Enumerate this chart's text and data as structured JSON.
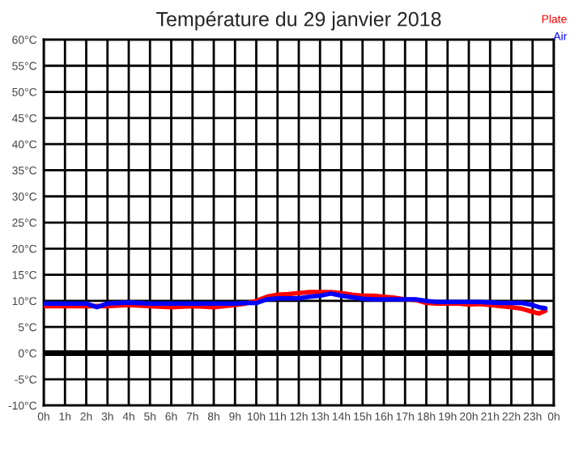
{
  "chart_data": {
    "type": "line",
    "title": "Température du 29 janvier 2018",
    "xlim": [
      "2018-01-29T00:00",
      "2018-01-30T00:00"
    ],
    "xticks": [
      {
        "value": "2018-01-29T00:00",
        "label": "0h"
      },
      {
        "value": "2018-01-29T01:00",
        "label": "1h"
      },
      {
        "value": "2018-01-29T02:00",
        "label": "2h"
      },
      {
        "value": "2018-01-29T03:00",
        "label": "3h"
      },
      {
        "value": "2018-01-29T04:00",
        "label": "4h"
      },
      {
        "value": "2018-01-29T05:00",
        "label": "5h"
      },
      {
        "value": "2018-01-29T06:00",
        "label": "6h"
      },
      {
        "value": "2018-01-29T07:00",
        "label": "7h"
      },
      {
        "value": "2018-01-29T08:00",
        "label": "8h"
      },
      {
        "value": "2018-01-29T09:00",
        "label": "9h"
      },
      {
        "value": "2018-01-29T10:00",
        "label": "10h"
      },
      {
        "value": "2018-01-29T11:00",
        "label": "11h"
      },
      {
        "value": "2018-01-29T12:00",
        "label": "12h"
      },
      {
        "value": "2018-01-29T13:00",
        "label": "13h"
      },
      {
        "value": "2018-01-29T14:00",
        "label": "14h"
      },
      {
        "value": "2018-01-29T15:00",
        "label": "15h"
      },
      {
        "value": "2018-01-29T16:00",
        "label": "16h"
      },
      {
        "value": "2018-01-29T17:00",
        "label": "17h"
      },
      {
        "value": "2018-01-29T18:00",
        "label": "18h"
      },
      {
        "value": "2018-01-29T19:00",
        "label": "19h"
      },
      {
        "value": "2018-01-29T20:00",
        "label": "20h"
      },
      {
        "value": "2018-01-29T21:00",
        "label": "21h"
      },
      {
        "value": "2018-01-29T22:00",
        "label": "22h"
      },
      {
        "value": "2018-01-29T23:00",
        "label": "23h"
      },
      {
        "value": "2018-01-30T00:00",
        "label": "0h"
      }
    ],
    "ylim": [
      -10,
      60
    ],
    "yticks": [
      {
        "value": -10,
        "label": "-10°C"
      },
      {
        "value": -5,
        "label": "-5°C"
      },
      {
        "value": 0,
        "label": "0°C"
      },
      {
        "value": 5,
        "label": "5°C"
      },
      {
        "value": 10,
        "label": "10°C"
      },
      {
        "value": 15,
        "label": "15°C"
      },
      {
        "value": 20,
        "label": "20°C"
      },
      {
        "value": 25,
        "label": "25°C"
      },
      {
        "value": 30,
        "label": "30°C"
      },
      {
        "value": 35,
        "label": "35°C"
      },
      {
        "value": 40,
        "label": "40°C"
      },
      {
        "value": 45,
        "label": "45°C"
      },
      {
        "value": 50,
        "label": "50°C"
      },
      {
        "value": 55,
        "label": "55°C"
      },
      {
        "value": 60,
        "label": "60°C"
      }
    ],
    "grid": true,
    "legend": "top right",
    "marker": "none",
    "line_style": "solid",
    "ref_lines": [
      {
        "axis": "y",
        "value": 0,
        "color": "#000000"
      }
    ],
    "series": [
      {
        "name": "Plate",
        "color": "#ff0000",
        "x": [
          "2018-01-29T00:00",
          "2018-01-29T01:00",
          "2018-01-29T02:00",
          "2018-01-29T03:00",
          "2018-01-29T04:00",
          "2018-01-29T05:00",
          "2018-01-29T06:00",
          "2018-01-29T07:00",
          "2018-01-29T08:00",
          "2018-01-29T09:00",
          "2018-01-29T09:30",
          "2018-01-29T10:00",
          "2018-01-29T10:30",
          "2018-01-29T11:00",
          "2018-01-29T11:30",
          "2018-01-29T12:00",
          "2018-01-29T12:30",
          "2018-01-29T13:00",
          "2018-01-29T13:30",
          "2018-01-29T14:00",
          "2018-01-29T14:30",
          "2018-01-29T15:00",
          "2018-01-29T15:30",
          "2018-01-29T16:00",
          "2018-01-29T16:30",
          "2018-01-29T17:00",
          "2018-01-29T17:30",
          "2018-01-29T18:00",
          "2018-01-29T18:30",
          "2018-01-29T19:00",
          "2018-01-29T19:30",
          "2018-01-29T20:00",
          "2018-01-29T20:30",
          "2018-01-29T21:00",
          "2018-01-29T21:30",
          "2018-01-29T22:00",
          "2018-01-29T22:30",
          "2018-01-29T23:00",
          "2018-01-29T23:18",
          "2018-01-29T23:36"
        ],
        "values": [
          9,
          9,
          9,
          9,
          9.2,
          9,
          8.8,
          9,
          8.8,
          9.2,
          9.5,
          10,
          10.8,
          11.2,
          11.3,
          11.5,
          11.7,
          11.7,
          11.7,
          11.5,
          11.2,
          11,
          11,
          10.8,
          10.6,
          10.3,
          10.2,
          9.6,
          9.5,
          9.5,
          9.5,
          9.3,
          9.4,
          9.2,
          9,
          8.8,
          8.5,
          7.9,
          7.6,
          8.1
        ]
      },
      {
        "name": "Air",
        "color": "#0000ff",
        "x": [
          "2018-01-29T00:00",
          "2018-01-29T01:00",
          "2018-01-29T02:00",
          "2018-01-29T02:30",
          "2018-01-29T03:00",
          "2018-01-29T04:00",
          "2018-01-29T05:00",
          "2018-01-29T06:00",
          "2018-01-29T07:00",
          "2018-01-29T08:00",
          "2018-01-29T09:00",
          "2018-01-29T09:30",
          "2018-01-29T10:00",
          "2018-01-29T10:30",
          "2018-01-29T11:00",
          "2018-01-29T11:30",
          "2018-01-29T12:00",
          "2018-01-29T12:30",
          "2018-01-29T13:00",
          "2018-01-29T13:30",
          "2018-01-29T14:00",
          "2018-01-29T14:30",
          "2018-01-29T15:00",
          "2018-01-29T15:30",
          "2018-01-29T16:00",
          "2018-01-29T16:30",
          "2018-01-29T17:00",
          "2018-01-29T17:30",
          "2018-01-29T18:00",
          "2018-01-29T18:30",
          "2018-01-29T19:00",
          "2018-01-29T19:30",
          "2018-01-29T20:00",
          "2018-01-29T20:30",
          "2018-01-29T21:00",
          "2018-01-29T21:30",
          "2018-01-29T22:00",
          "2018-01-29T22:30",
          "2018-01-29T23:00",
          "2018-01-29T23:18",
          "2018-01-29T23:36"
        ],
        "values": [
          9.5,
          9.5,
          9.5,
          8.8,
          9.5,
          9.7,
          9.5,
          9.5,
          9.5,
          9.5,
          9.5,
          9.6,
          9.6,
          10.3,
          10.5,
          10.5,
          10.5,
          10.8,
          11,
          11.4,
          11,
          10.7,
          10.4,
          10.3,
          10.3,
          10.3,
          10.3,
          10.3,
          10,
          9.8,
          9.8,
          9.8,
          9.8,
          9.8,
          9.7,
          9.6,
          9.6,
          9.6,
          9.2,
          8.8,
          8.6
        ]
      }
    ]
  }
}
